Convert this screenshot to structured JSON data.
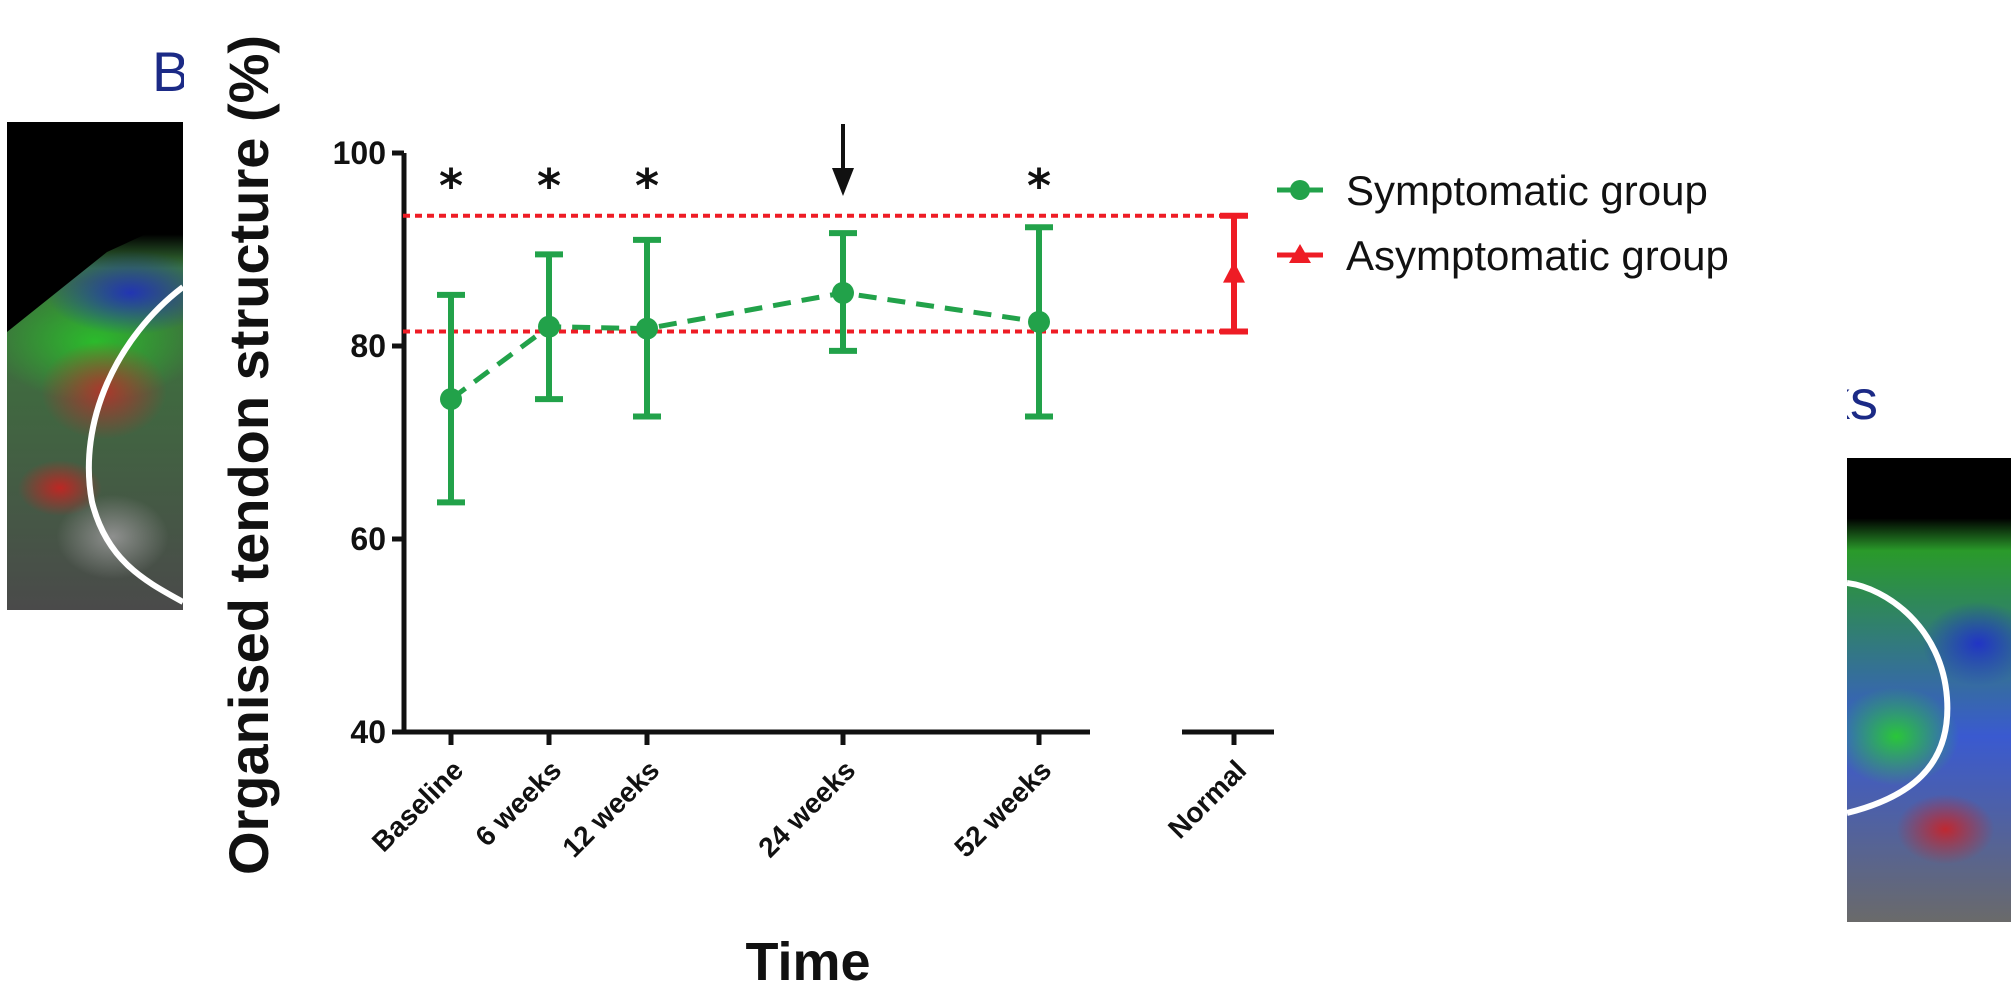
{
  "background": {
    "left_label": "B",
    "right_label": "ks"
  },
  "colors": {
    "symptomatic": "#22a24a",
    "asymptomatic": "#ee1c25",
    "axis": "#111111"
  },
  "chart_data": {
    "type": "line",
    "title": "",
    "xlabel": "Time",
    "ylabel": "Organised tendon structure (%)",
    "ylim": [
      40,
      100
    ],
    "yticks": [
      40,
      60,
      80,
      100
    ],
    "categories": [
      "Baseline",
      "6 weeks",
      "12 weeks",
      "24 weeks",
      "52 weeks",
      "Normal"
    ],
    "series": [
      {
        "name": "Symptomatic group",
        "marker": "circle",
        "line": "dashed",
        "x": [
          "Baseline",
          "6 weeks",
          "12 weeks",
          "24 weeks",
          "52 weeks"
        ],
        "values": [
          74.5,
          82.0,
          81.8,
          85.5,
          82.5
        ],
        "error_low": [
          63.8,
          74.5,
          72.7,
          79.5,
          72.7
        ],
        "error_high": [
          85.3,
          89.5,
          91.0,
          91.7,
          92.3
        ]
      },
      {
        "name": "Asymptomatic group",
        "marker": "triangle",
        "x": [
          "Normal"
        ],
        "values": [
          87.5
        ],
        "error_low": [
          81.5
        ],
        "error_high": [
          93.5
        ],
        "reference_lines": [
          81.5,
          93.5
        ]
      }
    ],
    "annotations": {
      "significance_marker": "*",
      "significant_at": [
        "Baseline",
        "6 weeks",
        "12 weeks",
        "52 weeks"
      ],
      "arrow_at": "24 weeks"
    },
    "legend_position": "top-right"
  }
}
